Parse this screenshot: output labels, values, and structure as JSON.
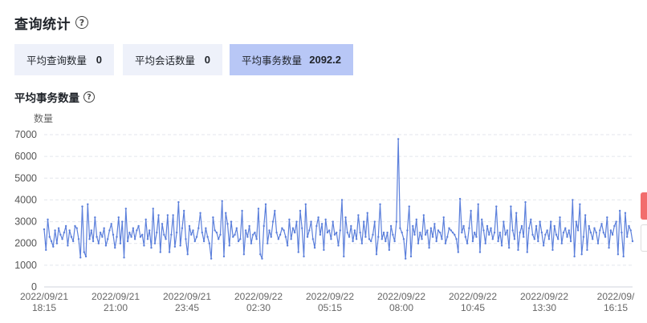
{
  "header": {
    "title": "查询统计",
    "help_icon": "question-circle-icon"
  },
  "metrics": [
    {
      "label": "平均查询数量",
      "value": "0",
      "active": false
    },
    {
      "label": "平均会话数量",
      "value": "0",
      "active": false
    },
    {
      "label": "平均事务数量",
      "value": "2092.2",
      "active": true
    }
  ],
  "section": {
    "title": "平均事务数量",
    "help_icon": "question-circle-icon"
  },
  "colors": {
    "line": "#5b7fdb",
    "active_card": "#b8c7f6",
    "card": "#eef1fa"
  },
  "chart_data": {
    "type": "line",
    "ylabel": "数量",
    "ylim": [
      0,
      7000
    ],
    "yticks": [
      0,
      1000,
      2000,
      3000,
      4000,
      5000,
      6000,
      7000
    ],
    "xticks": [
      {
        "date": "2022/09/21",
        "time": "18:15"
      },
      {
        "date": "2022/09/21",
        "time": "21:00"
      },
      {
        "date": "2022/09/21",
        "time": "23:45"
      },
      {
        "date": "2022/09/22",
        "time": "02:30"
      },
      {
        "date": "2022/09/22",
        "time": "05:15"
      },
      {
        "date": "2022/09/22",
        "time": "08:00"
      },
      {
        "date": "2022/09/22",
        "time": "10:45"
      },
      {
        "date": "2022/09/22",
        "time": "13:30"
      },
      {
        "date": "2022/09/",
        "time": "16:15"
      }
    ],
    "grid": true,
    "series": [
      {
        "values": [
          2650,
          1700,
          3100,
          2300,
          2100,
          1850,
          2600,
          2000,
          2700,
          2400,
          2200,
          2500,
          2800,
          1900,
          2600,
          2300,
          2100,
          2800,
          2700,
          2200,
          1350,
          3700,
          1600,
          1400,
          3800,
          2200,
          2600,
          2100,
          3200,
          2300,
          2000,
          2500,
          2300,
          2700,
          1900,
          2200,
          2600,
          2900,
          2400,
          1800,
          2300,
          3200,
          2000,
          3000,
          1350,
          3600,
          2100,
          2500,
          2300,
          2700,
          2200,
          2600,
          2800,
          2300,
          2400,
          1900,
          3100,
          2200,
          2600,
          1800,
          3600,
          2000,
          2500,
          3300,
          1600,
          2900,
          2400,
          2200,
          3300,
          1600,
          2400,
          3300,
          1850,
          2500,
          3900,
          1900,
          2700,
          3500,
          2200,
          1500,
          2800,
          2400,
          2600,
          2100,
          2300,
          2700,
          3400,
          2500,
          2100,
          2700,
          2300,
          2000,
          1300,
          3200,
          2600,
          2500,
          2200,
          2400,
          3950,
          1400,
          3400,
          2900,
          1900,
          3000,
          2300,
          2400,
          2700,
          2100,
          2200,
          3500,
          1500,
          2600,
          2300,
          2800,
          2000,
          2400,
          2500,
          2200,
          3600,
          1500,
          1300,
          2800,
          3800,
          2000,
          2600,
          2300,
          3000,
          3500,
          2500,
          2200,
          2400,
          2700,
          2600,
          2300,
          1900,
          3100,
          2200,
          2700,
          2500,
          3000,
          1600,
          3500,
          2700,
          1400,
          3800,
          2300,
          2600,
          3000,
          2200,
          1800,
          2800,
          3200,
          2400,
          2900,
          1700,
          3100,
          2500,
          2600,
          2200,
          3000,
          2400,
          2500,
          1900,
          2600,
          4000,
          1400,
          3200,
          2500,
          2300,
          2800,
          2100,
          2600,
          2200,
          3300,
          2500,
          2000,
          3000,
          2300,
          3400,
          2200,
          2100,
          2400,
          3000,
          1500,
          2300,
          3800,
          2200,
          2500,
          2100,
          2500,
          1700,
          2800,
          2400,
          2100,
          3000,
          6800,
          2700,
          2500,
          2200,
          1300,
          2600,
          3700,
          1400,
          2800,
          2400,
          3100,
          2000,
          2500,
          2200,
          3300,
          2400,
          2600,
          1800,
          2700,
          2300,
          2900,
          2100,
          2600,
          2500,
          2200,
          3200,
          2000,
          2300,
          2700,
          2600,
          2500,
          2400,
          2200,
          1600,
          4050,
          2500,
          2800,
          2300,
          2000,
          2700,
          3500,
          2100,
          2500,
          2300,
          3800,
          1600,
          3100,
          2600,
          2000,
          2800,
          2400,
          2700,
          2200,
          2500,
          3700,
          2100,
          2500,
          1900,
          3000,
          2400,
          2600,
          1800,
          3700,
          2600,
          2200,
          3400,
          1700,
          2500,
          2800,
          2300,
          3900,
          1600,
          2700,
          3100,
          2400,
          2200,
          2800,
          2100,
          3000,
          2500,
          1900,
          2400,
          2600,
          2200,
          3000,
          1700,
          2800,
          2400,
          2200,
          3200,
          2000,
          2500,
          2700,
          2300,
          2600,
          2100,
          4000,
          1400,
          3000,
          2600,
          3800,
          1500,
          2300,
          3300,
          1700,
          2800,
          2500,
          2200,
          2700,
          2500,
          2000,
          2600,
          2900,
          2500,
          2300,
          3200,
          1800,
          2600,
          2400,
          2800,
          3000,
          1500,
          3500,
          2500,
          1400,
          3400,
          2300,
          2800,
          2600,
          2100
        ]
      }
    ]
  }
}
